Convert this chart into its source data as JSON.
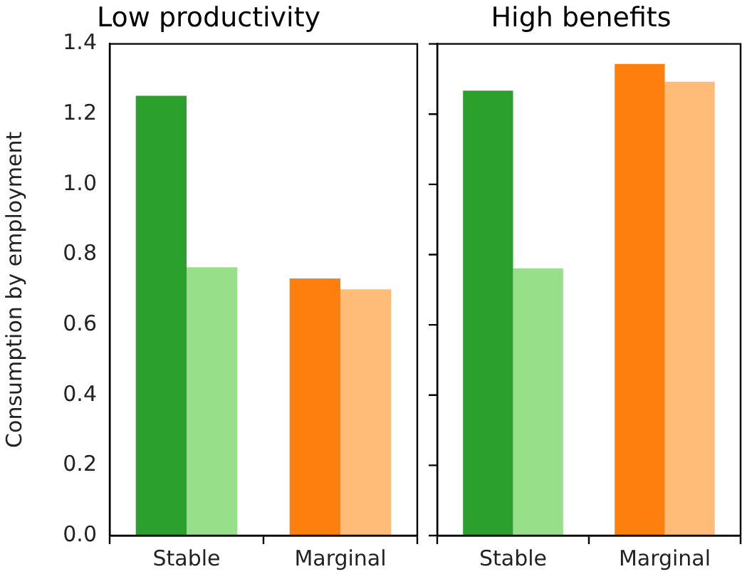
{
  "chart_data": [
    {
      "type": "bar",
      "title": "Low productivity",
      "ylabel": "Consumption by employment",
      "categories": [
        "Stable",
        "Marginal"
      ],
      "series": [
        {
          "colors": [
            "#2ca02c",
            "#ff7f0e"
          ],
          "values": [
            1.252,
            0.732
          ]
        },
        {
          "colors": [
            "#98df8a",
            "#ffbb78"
          ],
          "values": [
            0.764,
            0.701
          ]
        }
      ],
      "ylim": [
        0,
        1.4
      ],
      "yticks": [
        {
          "value": 0,
          "label": "0.0"
        },
        {
          "value": 0.2,
          "label": "0.2"
        },
        {
          "value": 0.4,
          "label": "0.4"
        },
        {
          "value": 0.6,
          "label": "0.6"
        },
        {
          "value": 0.8,
          "label": "0.8"
        },
        {
          "value": 1.0,
          "label": "1.0"
        },
        {
          "value": 1.2,
          "label": "1.2"
        },
        {
          "value": 1.4,
          "label": "1.4"
        }
      ],
      "grid": false,
      "legend": false
    },
    {
      "type": "bar",
      "title": "High benefits",
      "categories": [
        "Stable",
        "Marginal"
      ],
      "series": [
        {
          "colors": [
            "#2ca02c",
            "#ff7f0e"
          ],
          "values": [
            1.267,
            1.343
          ]
        },
        {
          "colors": [
            "#98df8a",
            "#ffbb78"
          ],
          "values": [
            0.761,
            1.292
          ]
        }
      ],
      "ylim": [
        0,
        1.4
      ],
      "yticks": [
        0,
        0.2,
        0.4,
        0.6,
        0.8,
        1,
        1.2,
        1.4
      ],
      "grid": false,
      "legend": false,
      "tick_labels": "x"
    }
  ]
}
